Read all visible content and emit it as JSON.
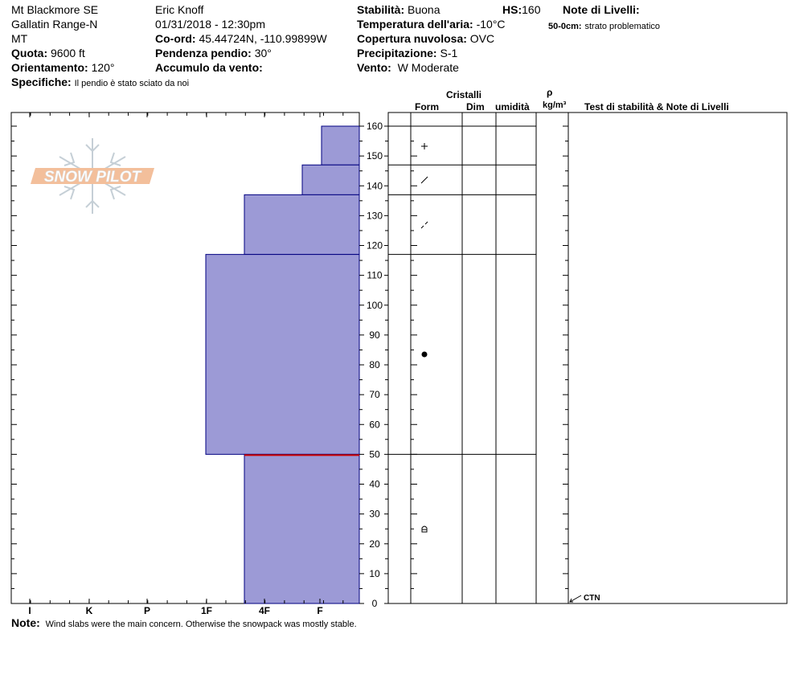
{
  "header": {
    "location": "Mt Blackmore SE",
    "range": "Gallatin Range-N",
    "state": "MT",
    "elevation_label": "Quota:",
    "elevation_value": "9600 ft",
    "aspect_label": "Orientamento:",
    "aspect_value": "120°",
    "details_label": "Specifiche:",
    "details_value": "Il pendio è stato sciato da noi",
    "observer": "Eric Knoff",
    "datetime": "01/31/2018 - 12:30pm",
    "coord_label": "Co-ord:",
    "coord_value": "45.44724N, -110.99899W",
    "slope_label": "Pendenza pendio:",
    "slope_value": "30°",
    "wind_loading_label": "Accumulo da vento:",
    "wind_loading_value": "",
    "stability_label": "Stabilità:",
    "stability_value": "Buona",
    "hs_label": "HS:",
    "hs_value": "160",
    "air_temp_label": "Temperatura dell'aria:",
    "air_temp_value": "-10°C",
    "sky_label": "Copertura nuvolosa:",
    "sky_value": "OVC",
    "precip_label": "Precipitazione:",
    "precip_value": "S-1",
    "wind_label": "Vento:",
    "wind_value": "W Moderate",
    "layer_notes_label": "Note di Livelli:",
    "layer_note_depth": "50-0cm:",
    "layer_note_text": "strato problematico"
  },
  "logo_text": "SNOW PILOT",
  "note_label": "Note:",
  "note_text": "Wind slabs were the main concern. Otherwise the snowpack was mostly stable.",
  "table_headers": {
    "crystals": "Cristalli",
    "form": "Form",
    "size": "Dim",
    "moisture": "umidità",
    "rho": "ρ",
    "density_unit": "kg/m³",
    "tests": "Test di stabilità & Note di Livelli"
  },
  "test_result_label": "CTN",
  "colors": {
    "layer_fill": "#9c9ad6",
    "layer_stroke": "#000080",
    "problem_line": "#cc0000",
    "logo_orange": "#f2b48a",
    "logo_grey": "#bcc7cf"
  },
  "chart_data": {
    "type": "snow-profile",
    "y_unit": "cm",
    "ylim": [
      0,
      160
    ],
    "y_ticks": [
      0,
      10,
      20,
      30,
      40,
      50,
      60,
      70,
      80,
      90,
      100,
      110,
      120,
      130,
      140,
      150,
      160
    ],
    "hardness_scale": [
      "I",
      "K",
      "P",
      "1F",
      "4F",
      "F"
    ],
    "layers": [
      {
        "bottom": 147,
        "top": 160,
        "hardness": "F+",
        "form": "+"
      },
      {
        "bottom": 137,
        "top": 147,
        "hardness": "F-",
        "form": "/"
      },
      {
        "bottom": 117,
        "top": 137,
        "hardness": "4F",
        "form": "/ (decomposing)"
      },
      {
        "bottom": 50,
        "top": 117,
        "hardness": "1F-",
        "form": "●"
      },
      {
        "bottom": 0,
        "top": 50,
        "hardness": "4F",
        "form": "▵"
      }
    ],
    "problem_layer_height": 50,
    "stability_test": {
      "result": "CTN",
      "height": 0
    }
  }
}
